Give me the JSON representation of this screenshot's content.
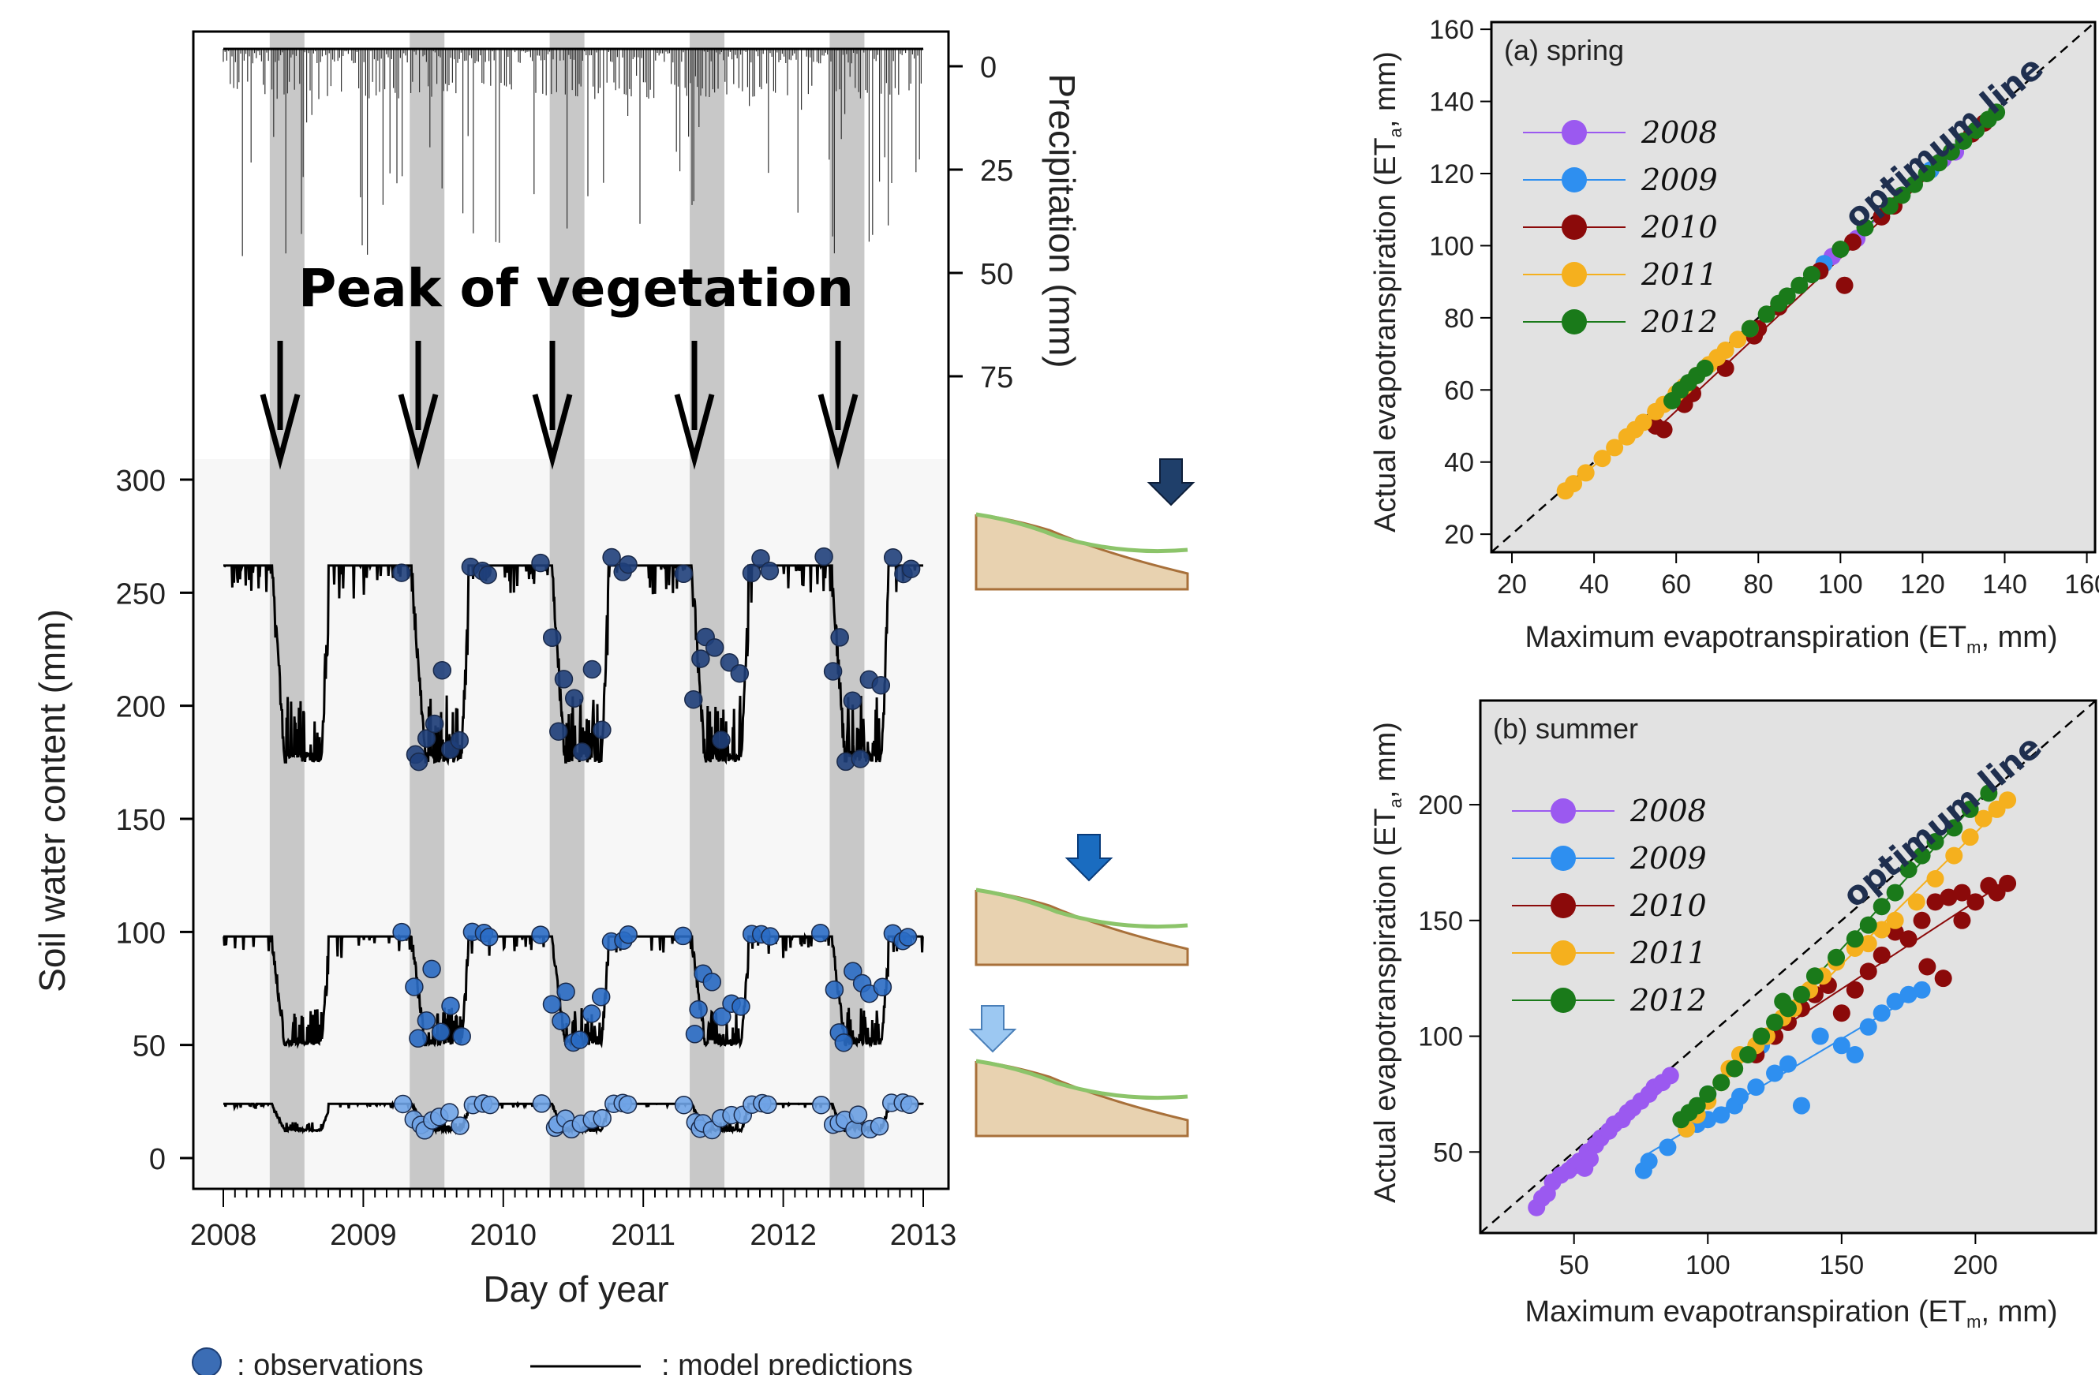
{
  "left_chart": {
    "xlabel": "Day of year",
    "ylabel_left": "Soil water content (mm)",
    "ylabel_right": "Precipitation (mm)",
    "annotation": "Peak of vegetation",
    "x_ticks": [
      "2008",
      "2009",
      "2010",
      "2011",
      "2012",
      "2013"
    ],
    "y_ticks_left": [
      "0",
      "50",
      "100",
      "150",
      "200",
      "250",
      "300"
    ],
    "y_ticks_right": [
      "0",
      "25",
      "50",
      "75"
    ],
    "legend_obs": ": observations",
    "legend_model": ": model predictions",
    "colors": {
      "deep": "#1f3f7a",
      "mid": "#2a6cc4",
      "shallow": "#6fa3e6",
      "band": "#c8c8c8",
      "panel": "#f7f7f7"
    }
  },
  "chart_data": [
    {
      "type": "line",
      "xlabel": "Day of year",
      "ylabel": "Soil water content (mm)",
      "x": [
        "2008",
        "2009",
        "2010",
        "2011",
        "2012",
        "2013"
      ],
      "ylim": [
        0,
        300
      ],
      "peak_of_vegetation_bands": [
        2008.45,
        2009.45,
        2010.45,
        2011.45,
        2012.45
      ],
      "series": [
        {
          "depth": "deep",
          "model_high": 262,
          "model_low": 175
        },
        {
          "depth": "mid",
          "model_high": 98,
          "model_low": 50
        },
        {
          "depth": "shallow",
          "model_high": 24,
          "model_low": 12
        }
      ],
      "precipitation_ylim": [
        0,
        75
      ]
    },
    {
      "type": "scatter",
      "title": "(a) spring",
      "xlabel": "Maximum evapotranspiration (ET",
      "xlabel_sub": "m",
      "xlabel_end": ", mm)",
      "ylabel": "Actual evapotranspiration (ET",
      "ylabel_sub": "a",
      "ylabel_end": ", mm)",
      "xlim": [
        15,
        162
      ],
      "ylim": [
        15,
        162
      ],
      "x_ticks": [
        "20",
        "40",
        "60",
        "80",
        "100",
        "120",
        "140",
        "160"
      ],
      "y_ticks": [
        "20",
        "40",
        "60",
        "80",
        "100",
        "120",
        "140",
        "160"
      ],
      "optimum_label": "optimum line",
      "legend": [
        "2008",
        "2009",
        "2010",
        "2011",
        "2012"
      ],
      "series": [
        {
          "name": "2008",
          "color": "#9b59f0",
          "points": [
            [
              98,
              97
            ],
            [
              104,
              102
            ],
            [
              125,
              124
            ],
            [
              128,
              126
            ]
          ]
        },
        {
          "name": "2009",
          "color": "#2e8ff0",
          "points": [
            [
              96,
              95
            ],
            [
              122,
              121
            ]
          ]
        },
        {
          "name": "2010",
          "color": "#8b0a0a",
          "points": [
            [
              55,
              50
            ],
            [
              57,
              49
            ],
            [
              62,
              56
            ],
            [
              64,
              59
            ],
            [
              72,
              66
            ],
            [
              79,
              75
            ],
            [
              80,
              77
            ],
            [
              85,
              83
            ],
            [
              95,
              93
            ],
            [
              101,
              89
            ],
            [
              103,
              101
            ],
            [
              110,
              108
            ],
            [
              113,
              111
            ],
            [
              132,
              131
            ],
            [
              135,
              134
            ]
          ]
        },
        {
          "name": "2011",
          "color": "#f5b01e",
          "points": [
            [
              33,
              32
            ],
            [
              35,
              34
            ],
            [
              38,
              37
            ],
            [
              42,
              41
            ],
            [
              45,
              44
            ],
            [
              48,
              47
            ],
            [
              50,
              49
            ],
            [
              52,
              51
            ],
            [
              55,
              54
            ],
            [
              57,
              56
            ],
            [
              60,
              59
            ],
            [
              62,
              61
            ],
            [
              65,
              64
            ],
            [
              68,
              67
            ],
            [
              70,
              69
            ],
            [
              72,
              71
            ],
            [
              75,
              74
            ],
            [
              78,
              77
            ]
          ]
        },
        {
          "name": "2012",
          "color": "#1a7a1a",
          "points": [
            [
              59,
              57
            ],
            [
              61,
              60
            ],
            [
              63,
              62
            ],
            [
              65,
              64
            ],
            [
              67,
              66
            ],
            [
              78,
              77
            ],
            [
              82,
              81
            ],
            [
              85,
              84
            ],
            [
              87,
              86
            ],
            [
              90,
              89
            ],
            [
              93,
              92
            ],
            [
              100,
              99
            ],
            [
              106,
              105
            ],
            [
              112,
              111
            ],
            [
              115,
              114
            ],
            [
              118,
              117
            ],
            [
              121,
              120
            ],
            [
              124,
              123
            ],
            [
              127,
              126
            ],
            [
              130,
              129
            ],
            [
              133,
              132
            ],
            [
              136,
              135
            ],
            [
              138,
              137
            ]
          ]
        }
      ]
    },
    {
      "type": "scatter",
      "title": "(b) summer",
      "xlabel": "Maximum evapotranspiration (ET",
      "xlabel_sub": "m",
      "xlabel_end": ", mm)",
      "ylabel": "Actual evapotranspiration (ET",
      "ylabel_sub": "a",
      "ylabel_end": ", mm)",
      "xlim": [
        15,
        245
      ],
      "ylim": [
        15,
        245
      ],
      "x_ticks": [
        "50",
        "100",
        "150",
        "200"
      ],
      "y_ticks": [
        "50",
        "100",
        "150",
        "200"
      ],
      "optimum_label": "optimum line",
      "legend": [
        "2008",
        "2009",
        "2010",
        "2011",
        "2012"
      ],
      "series": [
        {
          "name": "2008",
          "color": "#9b59f0",
          "points": [
            [
              36,
              26
            ],
            [
              38,
              30
            ],
            [
              40,
              32
            ],
            [
              42,
              37
            ],
            [
              45,
              40
            ],
            [
              48,
              42
            ],
            [
              50,
              44
            ],
            [
              52,
              46
            ],
            [
              55,
              50
            ],
            [
              58,
              53
            ],
            [
              60,
              56
            ],
            [
              63,
              59
            ],
            [
              65,
              62
            ],
            [
              68,
              64
            ],
            [
              70,
              67
            ],
            [
              72,
              69
            ],
            [
              75,
              72
            ],
            [
              78,
              75
            ],
            [
              80,
              78
            ],
            [
              83,
              80
            ],
            [
              86,
              83
            ],
            [
              56,
              47
            ],
            [
              54,
              43
            ]
          ]
        },
        {
          "name": "2009",
          "color": "#2e8ff0",
          "points": [
            [
              76,
              42
            ],
            [
              78,
              46
            ],
            [
              85,
              52
            ],
            [
              92,
              60
            ],
            [
              96,
              62
            ],
            [
              100,
              64
            ],
            [
              105,
              66
            ],
            [
              110,
              70
            ],
            [
              112,
              74
            ],
            [
              118,
              78
            ],
            [
              125,
              84
            ],
            [
              130,
              88
            ],
            [
              135,
              70
            ],
            [
              142,
              100
            ],
            [
              150,
              96
            ],
            [
              155,
              92
            ],
            [
              160,
              104
            ],
            [
              165,
              110
            ],
            [
              170,
              115
            ],
            [
              175,
              118
            ],
            [
              180,
              120
            ],
            [
              100,
              75
            ],
            [
              120,
              96
            ]
          ]
        },
        {
          "name": "2010",
          "color": "#8b0a0a",
          "points": [
            [
              118,
              92
            ],
            [
              125,
              100
            ],
            [
              130,
              106
            ],
            [
              135,
              112
            ],
            [
              140,
              118
            ],
            [
              145,
              122
            ],
            [
              150,
              110
            ],
            [
              155,
              120
            ],
            [
              160,
              128
            ],
            [
              165,
              135
            ],
            [
              170,
              145
            ],
            [
              175,
              142
            ],
            [
              180,
              150
            ],
            [
              185,
              158
            ],
            [
              190,
              160
            ],
            [
              195,
              162
            ],
            [
              200,
              158
            ],
            [
              205,
              165
            ],
            [
              208,
              162
            ],
            [
              212,
              166
            ],
            [
              182,
              130
            ],
            [
              188,
              125
            ],
            [
              195,
              150
            ]
          ]
        },
        {
          "name": "2011",
          "color": "#f5b01e",
          "points": [
            [
              92,
              60
            ],
            [
              96,
              66
            ],
            [
              100,
              72
            ],
            [
              105,
              80
            ],
            [
              108,
              86
            ],
            [
              112,
              92
            ],
            [
              118,
              96
            ],
            [
              122,
              100
            ],
            [
              128,
              108
            ],
            [
              132,
              112
            ],
            [
              138,
              120
            ],
            [
              143,
              126
            ],
            [
              148,
              132
            ],
            [
              155,
              138
            ],
            [
              160,
              140
            ],
            [
              165,
              146
            ],
            [
              170,
              150
            ],
            [
              178,
              158
            ],
            [
              185,
              168
            ],
            [
              192,
              178
            ],
            [
              198,
              186
            ],
            [
              203,
              194
            ],
            [
              208,
              198
            ],
            [
              212,
              202
            ]
          ]
        },
        {
          "name": "2012",
          "color": "#1a7a1a",
          "points": [
            [
              90,
              64
            ],
            [
              93,
              67
            ],
            [
              96,
              70
            ],
            [
              100,
              75
            ],
            [
              105,
              80
            ],
            [
              110,
              86
            ],
            [
              115,
              92
            ],
            [
              120,
              100
            ],
            [
              125,
              106
            ],
            [
              130,
              112
            ],
            [
              135,
              118
            ],
            [
              140,
              126
            ],
            [
              148,
              134
            ],
            [
              155,
              142
            ],
            [
              160,
              148
            ],
            [
              165,
              156
            ],
            [
              170,
              162
            ],
            [
              175,
              172
            ],
            [
              180,
              178
            ],
            [
              185,
              184
            ],
            [
              192,
              190
            ],
            [
              198,
              198
            ],
            [
              205,
              205
            ],
            [
              128,
              115
            ]
          ]
        }
      ]
    }
  ]
}
